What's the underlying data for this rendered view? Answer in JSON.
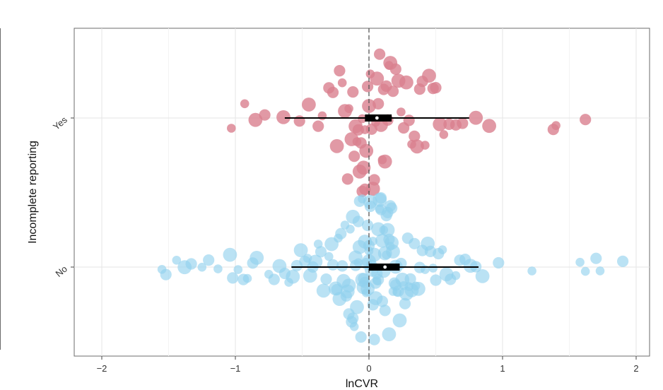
{
  "chart_data": {
    "type": "scatter",
    "subtype": "beeswarm-with-boxplot",
    "title": "",
    "xlabel": "lnCVR",
    "ylabel": "Incomplete reporting",
    "xlim": [
      -2.2,
      2.2
    ],
    "x_ticks": [
      -2,
      -1,
      0,
      1,
      2
    ],
    "categories": [
      "Yes",
      "No"
    ],
    "grid": true,
    "legend": "none",
    "reference_line": {
      "x": 0,
      "style": "dashed"
    },
    "colors": {
      "Yes": "#d9808f",
      "No": "#8fd0ee"
    },
    "series": [
      {
        "category": "Yes",
        "boxplot": {
          "whisker_low": -0.63,
          "q1": -0.03,
          "median": 0.06,
          "q3": 0.17,
          "whisker_high": 0.75
        },
        "x": [
          -1.03,
          -0.93,
          -0.85,
          -0.78,
          -0.64,
          -0.52,
          -0.45,
          -0.38,
          -0.35,
          -0.3,
          -0.27,
          -0.24,
          -0.22,
          -0.2,
          -0.18,
          -0.16,
          -0.15,
          -0.13,
          -0.12,
          -0.11,
          -0.1,
          -0.09,
          -0.08,
          -0.07,
          -0.06,
          -0.05,
          -0.05,
          -0.04,
          -0.03,
          -0.03,
          -0.02,
          -0.01,
          0.0,
          0.01,
          0.02,
          0.03,
          0.04,
          0.05,
          0.06,
          0.07,
          0.08,
          0.09,
          0.1,
          0.11,
          0.12,
          0.13,
          0.14,
          0.15,
          0.16,
          0.18,
          0.2,
          0.22,
          0.24,
          0.26,
          0.28,
          0.3,
          0.32,
          0.34,
          0.36,
          0.38,
          0.4,
          0.42,
          0.45,
          0.48,
          0.5,
          0.53,
          0.56,
          0.6,
          0.65,
          0.7,
          0.8,
          0.9,
          1.38,
          1.4,
          1.62
        ],
        "weight": [
          1,
          1,
          3,
          2,
          3,
          2,
          3,
          2,
          1,
          2,
          2,
          3,
          2,
          1,
          3,
          2,
          1,
          3,
          2,
          2,
          3,
          1,
          2,
          3,
          2,
          1,
          2,
          3,
          1,
          2,
          3,
          2,
          3,
          1,
          2,
          3,
          2,
          1,
          3,
          2,
          2,
          3,
          1,
          2,
          3,
          2,
          2,
          1,
          3,
          2,
          2,
          3,
          1,
          2,
          3,
          2,
          1,
          2,
          3,
          2,
          2,
          1,
          3,
          2,
          2,
          3,
          1,
          2,
          2,
          2,
          3,
          3,
          2,
          1,
          2
        ]
      },
      {
        "category": "No",
        "boxplot": {
          "whisker_low": -0.58,
          "q1": 0.0,
          "median": 0.12,
          "q3": 0.23,
          "whisker_high": 0.82
        },
        "x": [
          -1.55,
          -1.52,
          -1.44,
          -1.38,
          -1.33,
          -1.25,
          -1.2,
          -1.13,
          -1.04,
          -1.02,
          -0.98,
          -0.94,
          -0.91,
          -0.87,
          -0.84,
          -0.75,
          -0.71,
          -0.67,
          -0.63,
          -0.6,
          -0.57,
          -0.54,
          -0.51,
          -0.48,
          -0.46,
          -0.44,
          -0.42,
          -0.4,
          -0.38,
          -0.36,
          -0.34,
          -0.32,
          -0.3,
          -0.28,
          -0.27,
          -0.25,
          -0.24,
          -0.23,
          -0.22,
          -0.21,
          -0.2,
          -0.19,
          -0.18,
          -0.17,
          -0.16,
          -0.15,
          -0.15,
          -0.14,
          -0.13,
          -0.12,
          -0.12,
          -0.11,
          -0.1,
          -0.1,
          -0.09,
          -0.08,
          -0.08,
          -0.07,
          -0.07,
          -0.06,
          -0.05,
          -0.05,
          -0.04,
          -0.04,
          -0.03,
          -0.03,
          -0.02,
          -0.02,
          -0.01,
          -0.01,
          0.0,
          0.0,
          0.0,
          0.01,
          0.01,
          0.02,
          0.02,
          0.03,
          0.03,
          0.04,
          0.04,
          0.05,
          0.05,
          0.06,
          0.06,
          0.07,
          0.07,
          0.08,
          0.08,
          0.09,
          0.09,
          0.1,
          0.1,
          0.11,
          0.11,
          0.12,
          0.12,
          0.13,
          0.13,
          0.14,
          0.14,
          0.15,
          0.15,
          0.16,
          0.16,
          0.17,
          0.17,
          0.18,
          0.18,
          0.19,
          0.2,
          0.2,
          0.21,
          0.22,
          0.23,
          0.24,
          0.25,
          0.26,
          0.27,
          0.28,
          0.29,
          0.3,
          0.31,
          0.32,
          0.34,
          0.35,
          0.37,
          0.38,
          0.4,
          0.42,
          0.44,
          0.46,
          0.48,
          0.5,
          0.52,
          0.55,
          0.58,
          0.61,
          0.65,
          0.68,
          0.72,
          0.76,
          0.8,
          0.85,
          0.97,
          1.22,
          1.58,
          1.62,
          1.7,
          1.73,
          1.9
        ],
        "weight": [
          1,
          2,
          1,
          3,
          2,
          1,
          2,
          1,
          3,
          2,
          1,
          2,
          1,
          2,
          3,
          1,
          2,
          3,
          2,
          1,
          3,
          2,
          3,
          2,
          1,
          3,
          2,
          3,
          1,
          2,
          3,
          2,
          1,
          3,
          2,
          3,
          2,
          1,
          3,
          2,
          2,
          3,
          1,
          2,
          3,
          2,
          3,
          1,
          2,
          3,
          2,
          1,
          3,
          2,
          3,
          2,
          1,
          3,
          2,
          2,
          3,
          1,
          2,
          3,
          2,
          3,
          1,
          2,
          3,
          2,
          2,
          3,
          1,
          3,
          2,
          2,
          3,
          1,
          2,
          3,
          2,
          2,
          3,
          1,
          2,
          3,
          2,
          3,
          1,
          2,
          2,
          3,
          2,
          1,
          3,
          2,
          3,
          1,
          2,
          3,
          2,
          2,
          3,
          1,
          2,
          3,
          2,
          1,
          3,
          2,
          3,
          2,
          1,
          2,
          3,
          2,
          3,
          1,
          2,
          3,
          2,
          1,
          2,
          3,
          2,
          1,
          3,
          2,
          2,
          1,
          3,
          2,
          1,
          2,
          2,
          1,
          3,
          2,
          1,
          2,
          2,
          3,
          2,
          3,
          2,
          1,
          1,
          1,
          2,
          1,
          2
        ]
      }
    ]
  }
}
